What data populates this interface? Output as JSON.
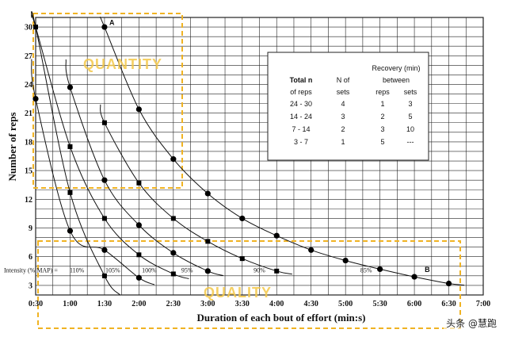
{
  "chart_data": {
    "type": "line",
    "xlabel": "Duration of each bout of effort (min:s)",
    "ylabel": "Number of reps",
    "x_ticks": [
      "0:30",
      "1:00",
      "1:30",
      "2:00",
      "2:30",
      "3:00",
      "3:30",
      "4:00",
      "4:30",
      "5:00",
      "5:30",
      "6:00",
      "6:30",
      "7:00"
    ],
    "x_tick_minutes": [
      0.5,
      1,
      1.5,
      2,
      2.5,
      3,
      3.5,
      4,
      4.5,
      5,
      5.5,
      6,
      6.5,
      7
    ],
    "y_ticks": [
      3,
      6,
      9,
      12,
      15,
      18,
      21,
      24,
      27,
      30
    ],
    "xlim_minutes": [
      0.5,
      7
    ],
    "ylim": [
      2,
      31
    ],
    "grid": true,
    "intensity_label": "Intensity (% MAP) =",
    "series": [
      {
        "name": "110%",
        "marker": "square",
        "x": [
          0.5,
          1,
          1.5
        ],
        "y": [
          30,
          12.7,
          4
        ]
      },
      {
        "name": "105%",
        "marker": "circle",
        "x": [
          0.5,
          1,
          1.5,
          2
        ],
        "y": [
          22.5,
          8.7,
          6.7,
          3.8
        ]
      },
      {
        "name": "100%",
        "marker": "square",
        "x": [
          0.5,
          1,
          1.5,
          2,
          2.5
        ],
        "y": [
          30,
          17.5,
          10,
          6.2,
          4.2
        ]
      },
      {
        "name": "95%",
        "marker": "circle",
        "x": [
          1,
          1.5,
          2,
          2.5,
          3
        ],
        "y": [
          23.7,
          14,
          9.3,
          6.4,
          4.5
        ]
      },
      {
        "name": "90%",
        "marker": "square",
        "x": [
          1.5,
          2,
          2.5,
          3,
          3.5,
          4
        ],
        "y": [
          20,
          13.7,
          10,
          7.6,
          5.8,
          4.5
        ]
      },
      {
        "name": "85%",
        "marker": "circle",
        "x": [
          1.5,
          2,
          2.5,
          3,
          3.5,
          4,
          4.5,
          5,
          5.5,
          6,
          6.5
        ],
        "y": [
          30,
          21.4,
          16.2,
          12.6,
          10,
          8.2,
          6.7,
          5.6,
          4.7,
          3.9,
          3.2
        ]
      }
    ],
    "point_labels": [
      {
        "text": "A",
        "x": 1.57,
        "y": 30.2
      },
      {
        "text": "B",
        "x": 6.15,
        "y": 4.4
      }
    ],
    "zones": [
      "QUANTITY",
      "QUALITY"
    ],
    "inset_table": {
      "header_top": "Recovery (min)",
      "header_left": [
        "Total  n",
        "N of",
        "between"
      ],
      "header_sub": [
        "of reps",
        "sets",
        "reps",
        "sets"
      ],
      "rows": [
        [
          "24 - 30",
          "4",
          "1",
          "3"
        ],
        [
          "14 - 24",
          "3",
          "2",
          "5"
        ],
        [
          "7 - 14",
          "2",
          "3",
          "10"
        ],
        [
          "3 -  7",
          "1",
          "5",
          "---"
        ]
      ]
    },
    "colors": {
      "grid": "#222222",
      "zone": "#f0b323",
      "marker": "#000000"
    }
  },
  "watermark": "头条 @慧跑"
}
